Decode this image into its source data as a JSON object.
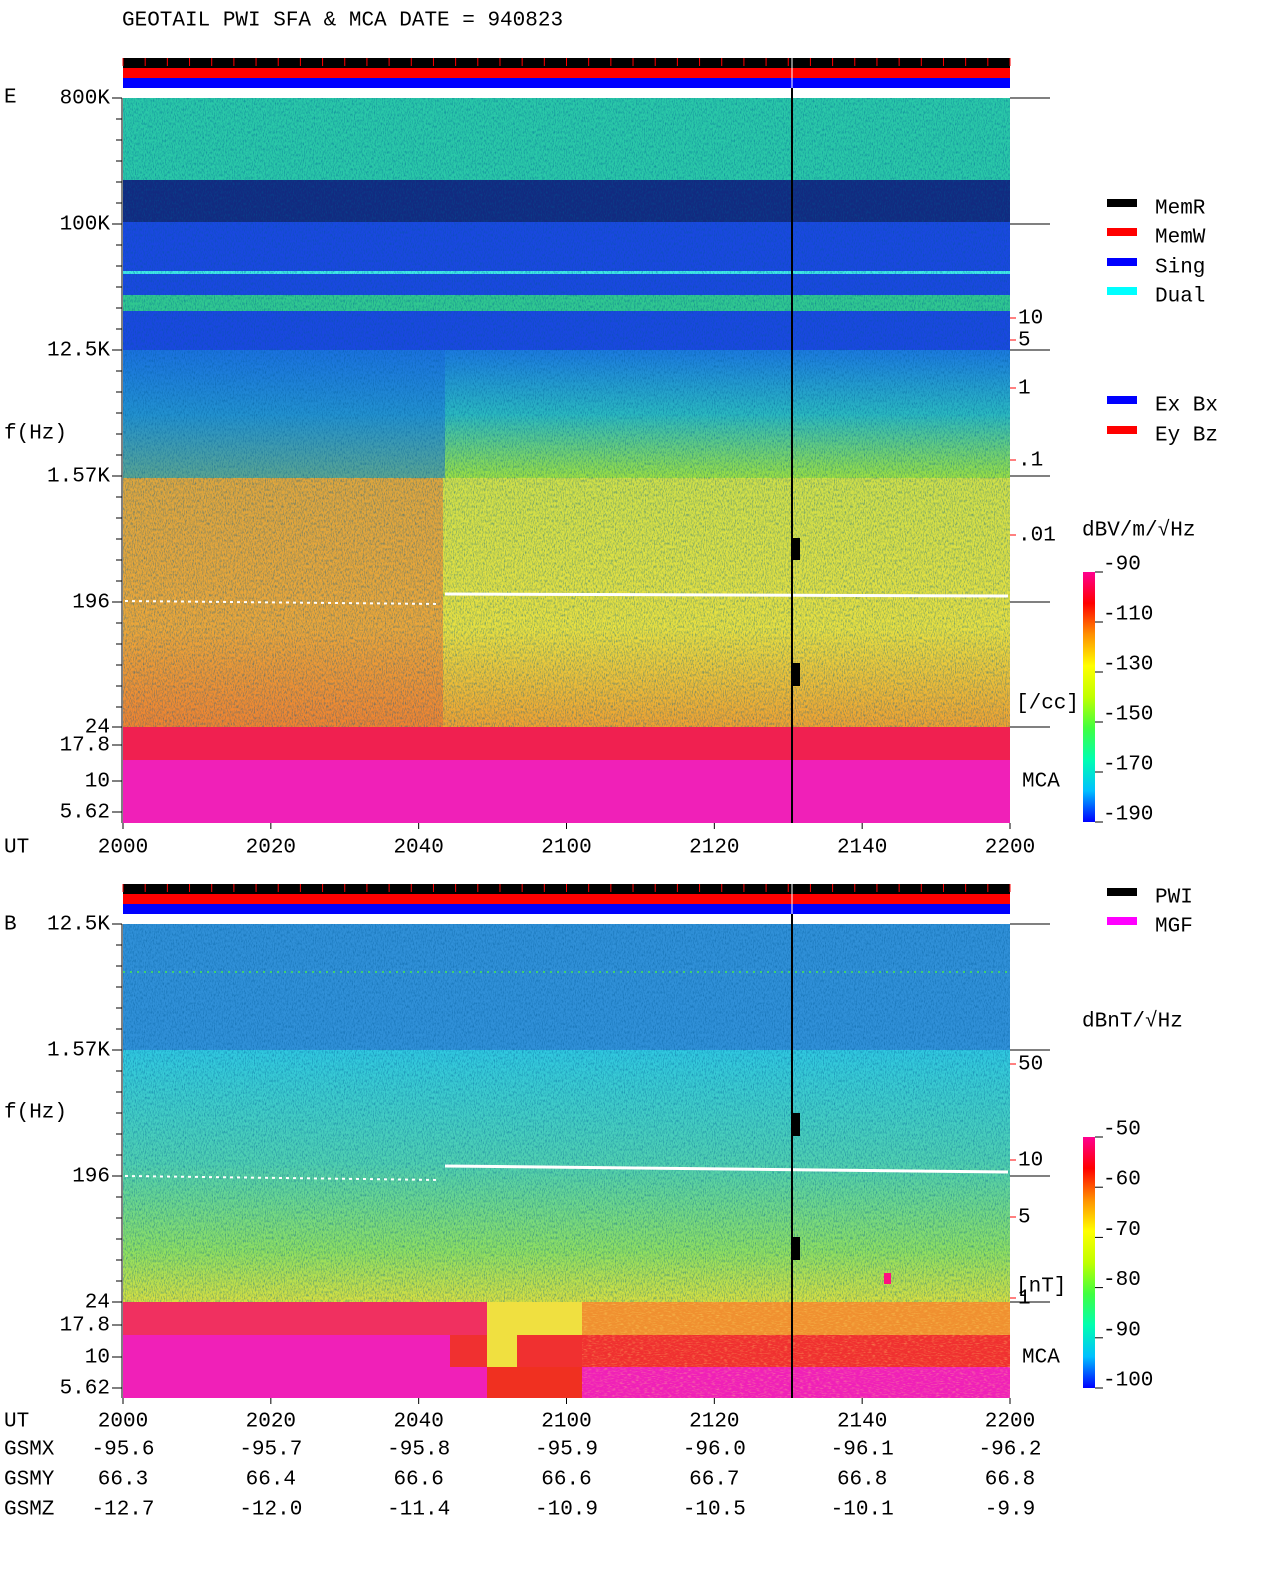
{
  "header": {
    "title": "GEOTAIL  PWI SFA & MCA   DATE = 940823"
  },
  "chart_data": [
    {
      "type": "spectrogram",
      "panel_label": "E",
      "y_label": "f(Hz)",
      "x_label": "UT",
      "yticks": [
        {
          "value": 800000,
          "label": "800K"
        },
        {
          "value": 100000,
          "label": "100K"
        },
        {
          "value": 12500,
          "label": "12.5K"
        },
        {
          "value": 1570,
          "label": "1.57K"
        },
        196,
        24,
        17.8,
        10,
        5.62
      ],
      "xticks": [
        2000,
        2020,
        2040,
        2100,
        2120,
        2140,
        2200
      ],
      "mca_label": "MCA",
      "y2ticks": [
        10,
        5,
        1,
        {
          "value": 0.1,
          "label": ".1"
        },
        {
          "value": 0.01,
          "label": ".01"
        }
      ],
      "y2_label": "[/cc]",
      "y2_color": "#ff0000",
      "colorbar": {
        "label": "dBV/m/√Hz",
        "clim": [
          -190,
          -90
        ],
        "ticks": [
          -90,
          -110,
          -130,
          -150,
          -170,
          -190
        ]
      }
    },
    {
      "type": "spectrogram",
      "panel_label": "B",
      "y_label": "f(Hz)",
      "x_label": "UT",
      "yticks": [
        {
          "value": 12500,
          "label": "12.5K"
        },
        {
          "value": 1570,
          "label": "1.57K"
        },
        196,
        24,
        17.8,
        10,
        5.62
      ],
      "xticks": [
        2000,
        2020,
        2040,
        2100,
        2120,
        2140,
        2200
      ],
      "mca_label": "MCA",
      "y2ticks": [
        50,
        10,
        5,
        1
      ],
      "y2_label": "[nT]",
      "y2_color": "#ff0000",
      "colorbar": {
        "label": "dBnT/√Hz",
        "clim": [
          -100,
          -50
        ],
        "ticks": [
          -50,
          -60,
          -70,
          -80,
          -90,
          -100
        ]
      }
    }
  ],
  "legends": [
    {
      "name": "MemR",
      "color": "#000000"
    },
    {
      "name": "MemW",
      "color": "#ff0000"
    },
    {
      "name": "Sing",
      "color": "#0000ff"
    },
    {
      "name": "Dual",
      "color": "#00ffff"
    },
    {
      "name": "Ex Bx",
      "color": "#0000ff"
    },
    {
      "name": "Ey Bz",
      "color": "#ff0000"
    },
    {
      "name": "PWI",
      "color": "#000000"
    },
    {
      "name": "MGF",
      "color": "#ff00ff"
    }
  ],
  "ephemeris": [
    {
      "name": "GSMX",
      "values": [
        -95.6,
        -95.7,
        -95.8,
        -95.9,
        {
          "value": -96,
          "label": "-96.0"
        },
        -96.1,
        -96.2
      ]
    },
    {
      "name": "GSMY",
      "values": [
        66.3,
        66.4,
        66.6,
        66.6,
        66.7,
        66.8,
        66.8
      ]
    },
    {
      "name": "GSMZ",
      "values": [
        -12.7,
        {
          "value": -12,
          "label": "-12.0"
        },
        -11.4,
        -10.9,
        -10.5,
        -10.1,
        -9.9
      ]
    }
  ]
}
